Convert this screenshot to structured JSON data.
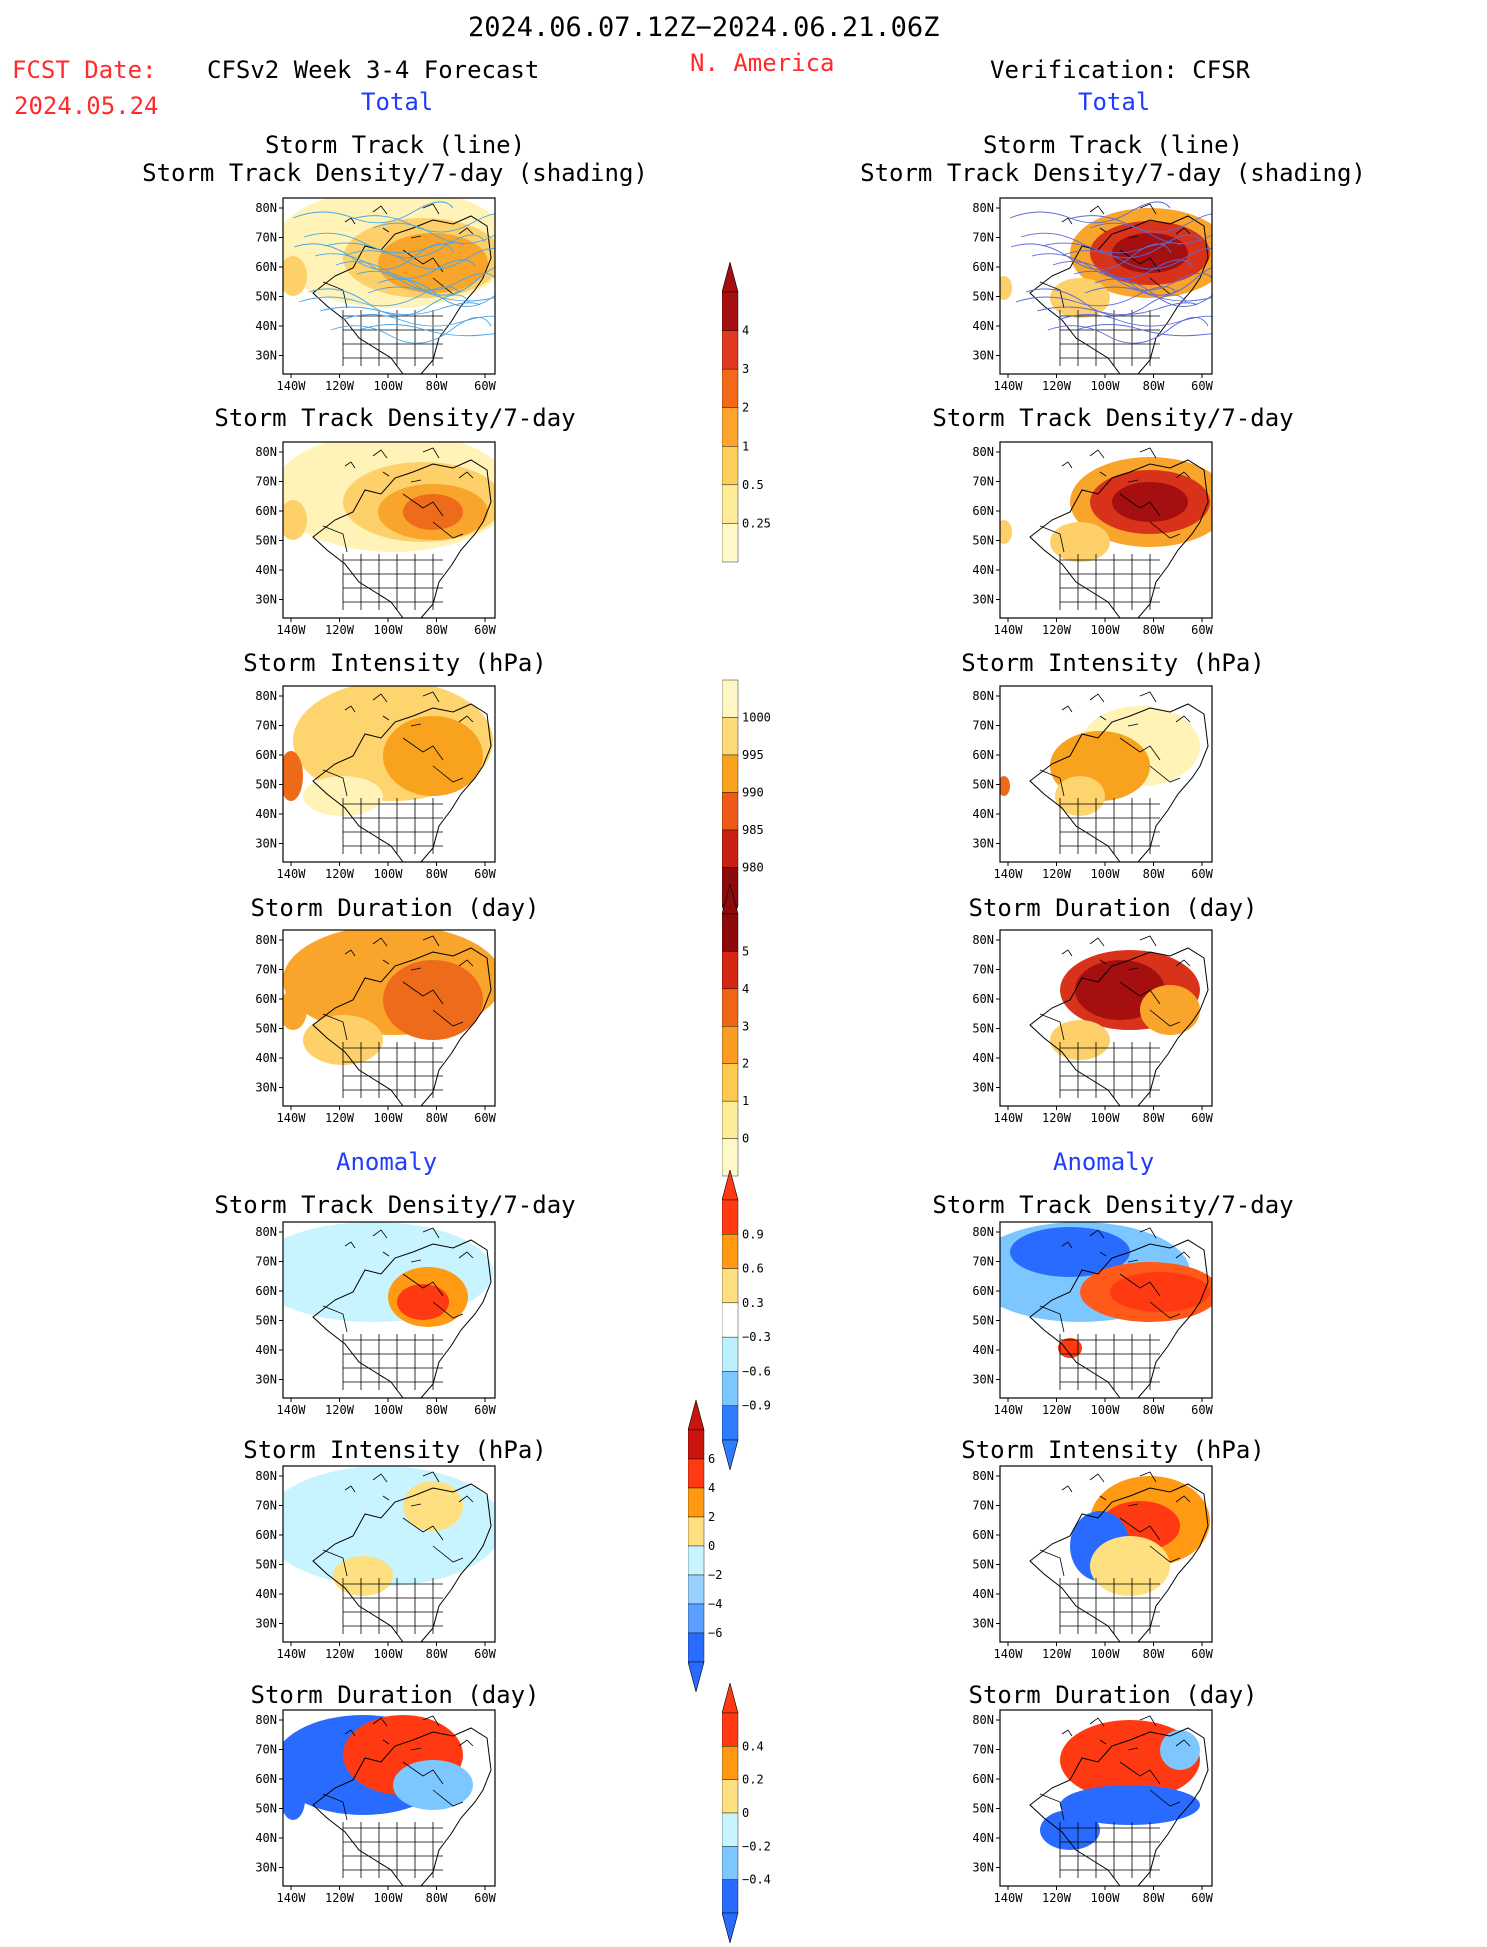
{
  "header": {
    "period": "2024.06.07.12Z−2024.06.21.06Z",
    "fcst_label": "FCST Date:",
    "fcst_date": "2024.05.24",
    "model_title": "CFSv2 Week 3-4 Forecast",
    "region": "N. America",
    "verification": "Verification: CFSR"
  },
  "sections": {
    "total": "Total",
    "anomaly": "Anomaly"
  },
  "panels": {
    "track_line": "Storm Track (line)",
    "track_shading": "Storm Track Density/7-day (shading)",
    "density": "Storm Track Density/7-day",
    "intensity": "Storm Intensity (hPa)",
    "duration": "Storm Duration (day)"
  },
  "axes": {
    "lat_ticks": [
      "80N",
      "70N",
      "60N",
      "50N",
      "40N",
      "30N"
    ],
    "lon_ticks": [
      "140W",
      "120W",
      "100W",
      "80W",
      "60W"
    ]
  },
  "colorbars": {
    "density_total": {
      "labels": [
        "4",
        "3",
        "2",
        "1",
        "0.5",
        "0.25"
      ],
      "colors": [
        "#a50f0f",
        "#e0391f",
        "#f26a19",
        "#fda52b",
        "#fccf5a",
        "#fdeb97",
        "#fff8c8"
      ]
    },
    "intensity_total": {
      "labels": [
        "1000",
        "995",
        "990",
        "985",
        "980"
      ],
      "colors": [
        "#fff6c6",
        "#fdd97a",
        "#f9a21e",
        "#ee5a18",
        "#c92012",
        "#8c0a0a"
      ]
    },
    "duration_total": {
      "labels": [
        "5",
        "4",
        "3",
        "2",
        "1",
        "0"
      ],
      "colors": [
        "#8c0a0a",
        "#d42814",
        "#f06418",
        "#fb9c22",
        "#fdc94e",
        "#fdeb97",
        "#fff8c8"
      ]
    },
    "density_anom": {
      "labels": [
        "0.9",
        "0.6",
        "0.3",
        "−0.3",
        "−0.6",
        "−0.9"
      ],
      "colors": [
        "#ff3a12",
        "#ff9a12",
        "#ffe080",
        "#ffffff",
        "#bdf0ff",
        "#7cc7ff",
        "#2f7cff"
      ]
    },
    "intensity_anom": {
      "labels": [
        "6",
        "4",
        "2",
        "0",
        "−2",
        "−4",
        "−6"
      ],
      "colors": [
        "#c9150e",
        "#ff3a12",
        "#ff9a12",
        "#ffe080",
        "#c8f4ff",
        "#98d0ff",
        "#5a9eff",
        "#2a6bff"
      ]
    },
    "duration_anom": {
      "labels": [
        "0.4",
        "0.2",
        "0",
        "−0.2",
        "−0.4"
      ],
      "colors": [
        "#ff3a12",
        "#ff9a12",
        "#ffe080",
        "#c8f4ff",
        "#7cc7ff",
        "#2a6bff"
      ]
    }
  },
  "colors": {
    "red_text": "#ff2a2a",
    "blue_text": "#1f3cff"
  }
}
